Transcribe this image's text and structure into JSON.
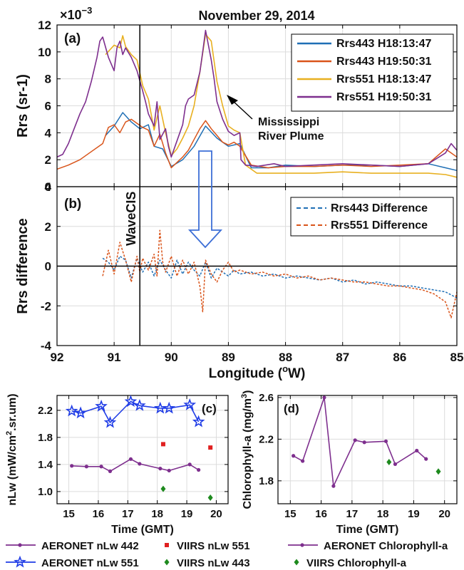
{
  "title": "November 29, 2014",
  "exponent": "×10^-3",
  "colors": {
    "blue": "#1f6fb5",
    "orange": "#d9541a",
    "yellow": "#e8b020",
    "purple": "#7e2f8e",
    "green": "#1e8a1e",
    "red": "#e02020",
    "star_blue": "#1f3ce6",
    "arrow_blue": "#3d6fd6"
  },
  "annotations": {
    "wavecis": "WaveCIS",
    "plume_line1": "Mississippi",
    "plume_line2": "River Plume"
  },
  "chart_data": [
    {
      "id": "a",
      "panel_label": "(a)",
      "type": "line",
      "ylabel": "Rrs (sr-1)",
      "ylim": [
        0,
        12
      ],
      "xlim": [
        92,
        85
      ],
      "x_reversed": true,
      "yticks": [
        0,
        2,
        4,
        6,
        8,
        10,
        12
      ],
      "grid": true,
      "legend_position": "top-right",
      "series": [
        {
          "name": "Rrs443 H18:13:47",
          "color": "blue",
          "x": [
            91.15,
            91.0,
            90.85,
            90.7,
            90.55,
            90.4,
            90.3,
            90.15,
            90.0,
            89.8,
            89.6,
            89.4,
            89.2,
            89.0,
            88.8,
            88.6,
            88.3,
            88.0,
            87.5,
            87.0,
            86.5,
            86.0,
            85.5,
            85.2,
            85.0
          ],
          "y": [
            3.8,
            4.5,
            5.5,
            4.8,
            4.3,
            4.6,
            3.0,
            2.8,
            1.5,
            2.0,
            3.0,
            4.5,
            3.6,
            3.0,
            3.2,
            1.4,
            1.4,
            1.6,
            1.5,
            1.6,
            1.6,
            1.5,
            1.7,
            1.4,
            1.2
          ]
        },
        {
          "name": "Rrs443 H19:50:31",
          "color": "orange",
          "x": [
            92.0,
            91.8,
            91.6,
            91.4,
            91.2,
            91.1,
            91.0,
            90.9,
            90.8,
            90.7,
            90.6,
            90.5,
            90.4,
            90.3,
            90.2,
            90.1,
            90.0,
            89.9,
            89.8,
            89.7,
            89.6,
            89.5,
            89.4,
            89.3,
            89.2,
            89.1,
            89.0,
            88.9,
            88.8,
            88.6,
            88.3,
            88.0,
            87.5,
            87.0,
            86.5,
            86.0,
            85.5,
            85.2,
            85.0
          ],
          "y": [
            1.3,
            1.6,
            2.0,
            2.6,
            3.2,
            4.4,
            4.6,
            4.0,
            4.8,
            5.0,
            4.7,
            4.4,
            4.2,
            3.0,
            3.9,
            2.5,
            1.4,
            1.8,
            2.2,
            2.7,
            3.5,
            4.3,
            4.9,
            4.3,
            3.8,
            3.3,
            3.1,
            3.3,
            3.0,
            1.6,
            1.4,
            1.5,
            1.5,
            1.6,
            1.5,
            1.6,
            1.7,
            2.8,
            2.2
          ]
        },
        {
          "name": "Rrs551 H18:13:47",
          "color": "yellow",
          "x": [
            91.15,
            91.0,
            90.9,
            90.85,
            90.8,
            90.7,
            90.6,
            90.5,
            90.4,
            90.3,
            90.2,
            90.1,
            90.0,
            89.9,
            89.8,
            89.7,
            89.6,
            89.5,
            89.4,
            89.3,
            89.2,
            89.1,
            89.0,
            88.9,
            88.8,
            88.7,
            88.5,
            88.2,
            88.0,
            87.5,
            87.0,
            86.5,
            86.0,
            85.5,
            85.2,
            85.0
          ],
          "y": [
            9.8,
            10.5,
            10.3,
            11.2,
            10.4,
            9.8,
            9.4,
            7.5,
            6.5,
            4.2,
            6.0,
            4.0,
            2.3,
            2.8,
            3.6,
            4.5,
            6.0,
            8.5,
            11.3,
            10.8,
            7.8,
            6.0,
            4.5,
            4.2,
            4.0,
            1.6,
            1.0,
            1.0,
            1.0,
            1.0,
            1.1,
            1.0,
            1.0,
            1.0,
            0.9,
            0.7
          ]
        },
        {
          "name": "Rrs551 H19:50:31",
          "color": "purple",
          "x": [
            92.0,
            91.9,
            91.8,
            91.7,
            91.6,
            91.5,
            91.4,
            91.3,
            91.25,
            91.2,
            91.1,
            91.0,
            90.95,
            90.9,
            90.85,
            90.8,
            90.7,
            90.6,
            90.5,
            90.45,
            90.4,
            90.3,
            90.25,
            90.2,
            90.1,
            90.05,
            90.0,
            89.9,
            89.8,
            89.75,
            89.7,
            89.6,
            89.5,
            89.45,
            89.4,
            89.35,
            89.3,
            89.25,
            89.2,
            89.1,
            89.0,
            88.9,
            88.8,
            88.78,
            88.7,
            88.5,
            88.2,
            88.0,
            87.5,
            87.0,
            86.5,
            86.0,
            85.5,
            85.2,
            85.1,
            85.0
          ],
          "y": [
            2.2,
            2.4,
            3.2,
            4.3,
            5.4,
            6.3,
            7.8,
            9.6,
            10.8,
            11.1,
            9.6,
            8.6,
            10.3,
            10.8,
            9.8,
            10.3,
            9.6,
            8.6,
            7.1,
            6.3,
            5.4,
            4.5,
            6.3,
            3.5,
            4.3,
            3.0,
            2.2,
            3.4,
            4.6,
            6.0,
            6.5,
            6.8,
            8.5,
            10.0,
            11.6,
            10.5,
            9.4,
            8.0,
            6.3,
            5.0,
            4.1,
            3.8,
            4.0,
            2.0,
            1.6,
            1.5,
            1.7,
            1.5,
            1.6,
            1.7,
            1.6,
            1.5,
            1.7,
            2.5,
            3.2,
            2.7
          ]
        }
      ]
    },
    {
      "id": "b",
      "panel_label": "(b)",
      "type": "line",
      "xlabel": "Longitude (°W)",
      "ylabel": "Rrs difference",
      "ylim": [
        -4,
        4
      ],
      "xlim": [
        92,
        85
      ],
      "x_reversed": true,
      "xticks": [
        92,
        91,
        90,
        89,
        88,
        87,
        86,
        85
      ],
      "yticks": [
        -4,
        -2,
        0,
        2,
        4
      ],
      "grid": true,
      "legend_position": "top-right",
      "series": [
        {
          "name": "Rrs443 Difference",
          "color": "blue",
          "style": "dashed",
          "x": [
            91.2,
            91.1,
            91.0,
            90.9,
            90.8,
            90.7,
            90.6,
            90.5,
            90.4,
            90.3,
            90.2,
            90.1,
            90.0,
            89.9,
            89.8,
            89.7,
            89.6,
            89.5,
            89.4,
            89.3,
            89.2,
            89.1,
            89.0,
            88.9,
            88.8,
            88.6,
            88.4,
            88.2,
            88.0,
            87.8,
            87.6,
            87.4,
            87.2,
            87.0,
            86.8,
            86.6,
            86.4,
            86.2,
            86.0,
            85.8,
            85.6,
            85.4,
            85.2,
            85.0
          ],
          "y": [
            0.4,
            0.2,
            -0.2,
            0.5,
            0.3,
            -0.6,
            0.4,
            -0.3,
            0.2,
            -0.5,
            0.3,
            -0.2,
            -0.6,
            0.3,
            -0.4,
            0.2,
            -0.2,
            -0.5,
            0.2,
            -0.6,
            -0.1,
            -0.3,
            -0.5,
            -0.2,
            -0.4,
            -0.3,
            -0.5,
            -0.4,
            -0.6,
            -0.5,
            -0.6,
            -0.7,
            -0.6,
            -0.8,
            -0.7,
            -0.9,
            -0.8,
            -0.9,
            -1.0,
            -1.0,
            -1.1,
            -1.2,
            -1.3,
            -1.6
          ]
        },
        {
          "name": "Rrs551 Difference",
          "color": "orange",
          "style": "dashed",
          "x": [
            91.2,
            91.1,
            91.0,
            90.9,
            90.8,
            90.7,
            90.6,
            90.55,
            90.5,
            90.4,
            90.3,
            90.25,
            90.2,
            90.15,
            90.1,
            90.0,
            89.9,
            89.8,
            89.7,
            89.6,
            89.5,
            89.45,
            89.4,
            89.3,
            89.2,
            89.1,
            89.0,
            88.9,
            88.8,
            88.6,
            88.4,
            88.2,
            88.0,
            87.8,
            87.6,
            87.4,
            87.2,
            87.0,
            86.8,
            86.6,
            86.4,
            86.2,
            86.0,
            85.8,
            85.6,
            85.4,
            85.2,
            85.1,
            85.0
          ],
          "y": [
            -0.5,
            0.8,
            -0.4,
            1.2,
            0.3,
            -0.8,
            0.5,
            -0.3,
            0.4,
            -0.2,
            0.6,
            -0.5,
            1.8,
            0.2,
            -0.3,
            0.5,
            -0.5,
            0.3,
            -0.4,
            0.2,
            -1.0,
            -2.3,
            0.3,
            -0.4,
            -0.8,
            -0.2,
            0.2,
            -0.3,
            -0.2,
            -0.4,
            -0.3,
            -0.5,
            -0.4,
            -0.6,
            -0.5,
            -0.7,
            -0.6,
            -0.7,
            -0.8,
            -0.8,
            -0.9,
            -1.0,
            -1.0,
            -1.1,
            -1.2,
            -1.4,
            -1.8,
            -2.6,
            -1.3
          ]
        }
      ]
    },
    {
      "id": "c",
      "panel_label": "(c)",
      "type": "scatter",
      "xlabel": "Time (GMT)",
      "ylabel": "nLw (mW/cm2.sr.um)",
      "ylabel_main": "nLw (mW/cm",
      "ylabel_sup": "2",
      "ylabel_tail": ".sr.um)",
      "xlim": [
        14.6,
        20.4
      ],
      "ylim": [
        0.82,
        2.42
      ],
      "xticks": [
        15,
        16,
        17,
        18,
        19,
        20
      ],
      "yticks": [
        1.0,
        1.4,
        1.8,
        2.2
      ],
      "ytick_labels": [
        "1.0",
        "1.4",
        "1.8",
        "2.2"
      ],
      "grid": true,
      "series": [
        {
          "name": "AERONET nLw 442",
          "color": "purple",
          "marker": "dot",
          "x": [
            15.1,
            15.6,
            16.1,
            16.4,
            17.1,
            17.4,
            18.1,
            18.4,
            19.1,
            19.4
          ],
          "y": [
            1.38,
            1.37,
            1.37,
            1.3,
            1.48,
            1.41,
            1.34,
            1.31,
            1.4,
            1.32
          ]
        },
        {
          "name": "AERONET nLw 551",
          "color": "star_blue",
          "marker": "star",
          "x": [
            15.1,
            15.4,
            16.1,
            16.4,
            17.1,
            17.4,
            18.1,
            18.4,
            19.1,
            19.4
          ],
          "y": [
            2.19,
            2.16,
            2.26,
            2.02,
            2.33,
            2.27,
            2.23,
            2.23,
            2.28,
            2.03
          ]
        },
        {
          "name": "VIIRS nLw 551",
          "color": "red",
          "marker": "square",
          "x": [
            18.2,
            19.8
          ],
          "y": [
            1.7,
            1.65
          ]
        },
        {
          "name": "VIIRS nLw 443",
          "color": "green",
          "marker": "diamond",
          "x": [
            18.2,
            19.8
          ],
          "y": [
            1.04,
            0.91
          ]
        }
      ]
    },
    {
      "id": "d",
      "panel_label": "(d)",
      "type": "scatter",
      "xlabel": "Time (GMT)",
      "ylabel": "Chlorophyll-a (mg/m3)",
      "ylabel_main": "Chlorophyll-a (mg/m",
      "ylabel_sup": "3",
      "ylabel_tail": ")",
      "xlim": [
        14.6,
        20.4
      ],
      "ylim": [
        1.58,
        2.62
      ],
      "xticks": [
        15,
        16,
        17,
        18,
        19,
        20
      ],
      "yticks": [
        1.8,
        2.2,
        2.6
      ],
      "ytick_labels": [
        "1.8",
        "2.2",
        "2.6"
      ],
      "grid": true,
      "series": [
        {
          "name": "AERONET Chlorophyll-a",
          "color": "purple",
          "marker": "dot",
          "x": [
            15.1,
            15.4,
            16.1,
            16.4,
            17.1,
            17.4,
            18.1,
            18.4,
            19.1,
            19.4
          ],
          "y": [
            2.04,
            1.99,
            2.6,
            1.75,
            2.19,
            2.17,
            2.18,
            1.96,
            2.09,
            2.01
          ]
        },
        {
          "name": "VIIRS Chlorophyll-a",
          "color": "green",
          "marker": "diamond",
          "x": [
            18.2,
            19.8
          ],
          "y": [
            1.98,
            1.89
          ]
        }
      ]
    }
  ]
}
